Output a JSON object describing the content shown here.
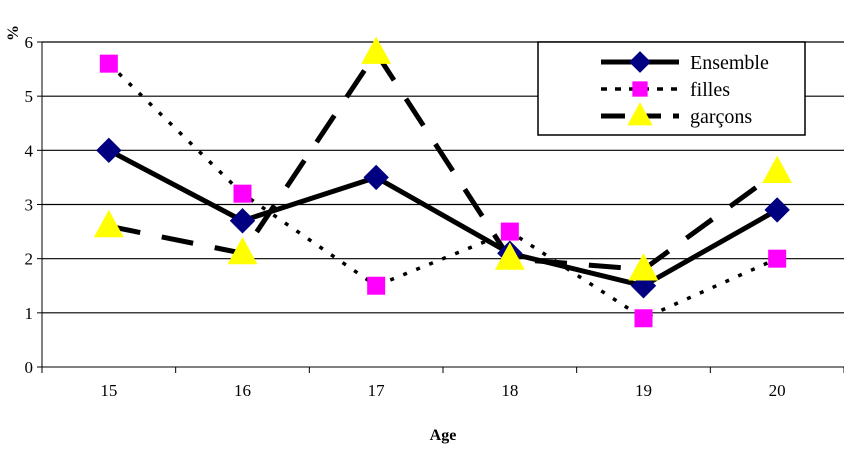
{
  "chart_data": {
    "type": "line",
    "xlabel": "Age",
    "ylabel": "%",
    "categories": [
      "15",
      "16",
      "17",
      "18",
      "19",
      "20"
    ],
    "ylim": [
      0,
      6
    ],
    "yticks": [
      0,
      1,
      2,
      3,
      4,
      5,
      6
    ],
    "grid": "horizontal",
    "legend_position": "top-right",
    "series": [
      {
        "name": "Ensemble",
        "values": [
          4.0,
          2.7,
          3.5,
          2.1,
          1.5,
          2.9
        ],
        "color": "#000080",
        "marker": "diamond-icon",
        "line_color": "#000000",
        "line_style": "solid"
      },
      {
        "name": "filles",
        "values": [
          5.6,
          3.2,
          1.5,
          2.5,
          0.9,
          2.0
        ],
        "color": "#ff00ff",
        "marker": "square-icon",
        "line_color": "#000000",
        "line_style": "dotted"
      },
      {
        "name": "garçons",
        "values": [
          2.6,
          2.1,
          5.8,
          2.0,
          1.8,
          3.6
        ],
        "color": "#ffff00",
        "marker": "triangle-icon",
        "line_color": "#000000",
        "line_style": "dashed"
      }
    ]
  }
}
